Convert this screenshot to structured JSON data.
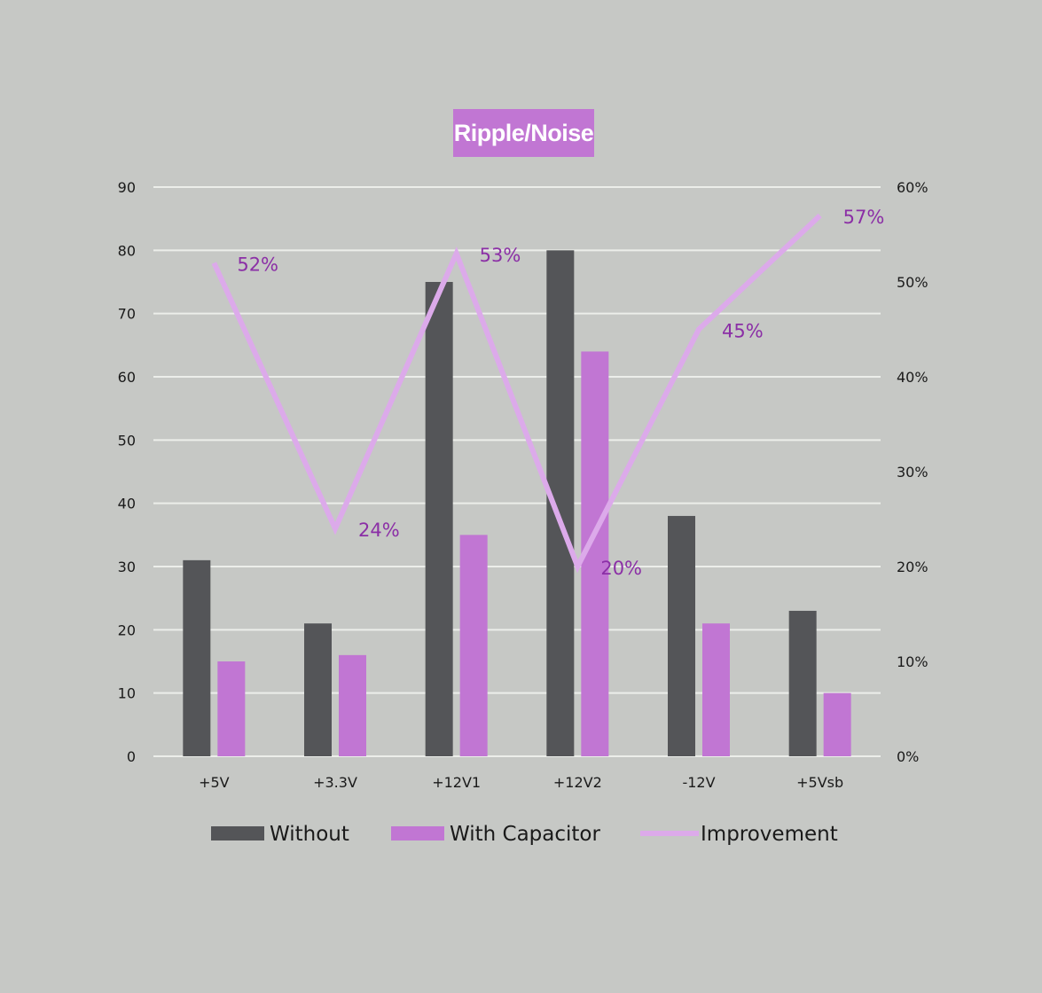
{
  "chart_data": {
    "type": "bar",
    "title": "Ripple/Noise",
    "categories": [
      "+5V",
      "+3.3V",
      "+12V1",
      "+12V2",
      "-12V",
      "+5Vsb"
    ],
    "series": [
      {
        "name": "Without",
        "type": "bar",
        "axis": "left",
        "color": "#545558",
        "values": [
          31,
          21,
          75,
          80,
          38,
          23
        ]
      },
      {
        "name": "With Capacitor",
        "type": "bar",
        "axis": "left",
        "color": "#c176d3",
        "values": [
          15,
          16,
          35,
          64,
          21,
          10
        ]
      },
      {
        "name": "Improvement",
        "type": "line",
        "axis": "right",
        "color": "#dcaaea",
        "values": [
          52,
          24,
          53,
          20,
          45,
          57
        ],
        "labels": [
          "52%",
          "24%",
          "53%",
          "20%",
          "45%",
          "57%"
        ]
      }
    ],
    "y_left": {
      "ylim": [
        0,
        90
      ],
      "ticks": [
        "0",
        "10",
        "20",
        "30",
        "40",
        "50",
        "60",
        "70",
        "80",
        "90"
      ]
    },
    "y_right": {
      "ylim": [
        0,
        60
      ],
      "ticks": [
        "0%",
        "10%",
        "20%",
        "30%",
        "40%",
        "50%",
        "60%"
      ]
    },
    "grid": true,
    "legend_position": "bottom"
  }
}
